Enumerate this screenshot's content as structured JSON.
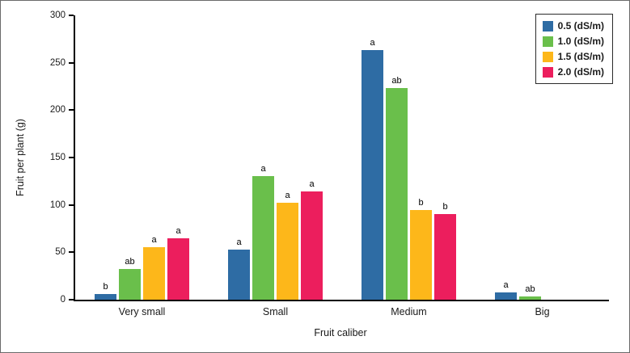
{
  "chart_data": {
    "type": "bar",
    "title": "",
    "xlabel": "Fruit caliber",
    "ylabel": "Fruit per plant (g)",
    "ylim": [
      0,
      300
    ],
    "ytick_step": 50,
    "grid": false,
    "legend_position": "top-right",
    "categories": [
      "Very small",
      "Small",
      "Medium",
      "Big"
    ],
    "series": [
      {
        "name": "0.5 (dS/m)",
        "color": "#2e6ca4",
        "values": [
          6,
          53,
          263,
          8
        ],
        "labels": [
          "b",
          "a",
          "a",
          "a"
        ]
      },
      {
        "name": "1.0 (dS/m)",
        "color": "#6abf4b",
        "values": [
          32,
          130,
          223,
          3
        ],
        "labels": [
          "ab",
          "a",
          "ab",
          "ab"
        ]
      },
      {
        "name": "1.5 (dS/m)",
        "color": "#fdb71a",
        "values": [
          55,
          102,
          95,
          0
        ],
        "labels": [
          "a",
          "a",
          "b",
          ""
        ]
      },
      {
        "name": "2.0 (dS/m)",
        "color": "#ec1e5d",
        "values": [
          65,
          114,
          90,
          0
        ],
        "labels": [
          "a",
          "a",
          "b",
          ""
        ]
      }
    ]
  }
}
